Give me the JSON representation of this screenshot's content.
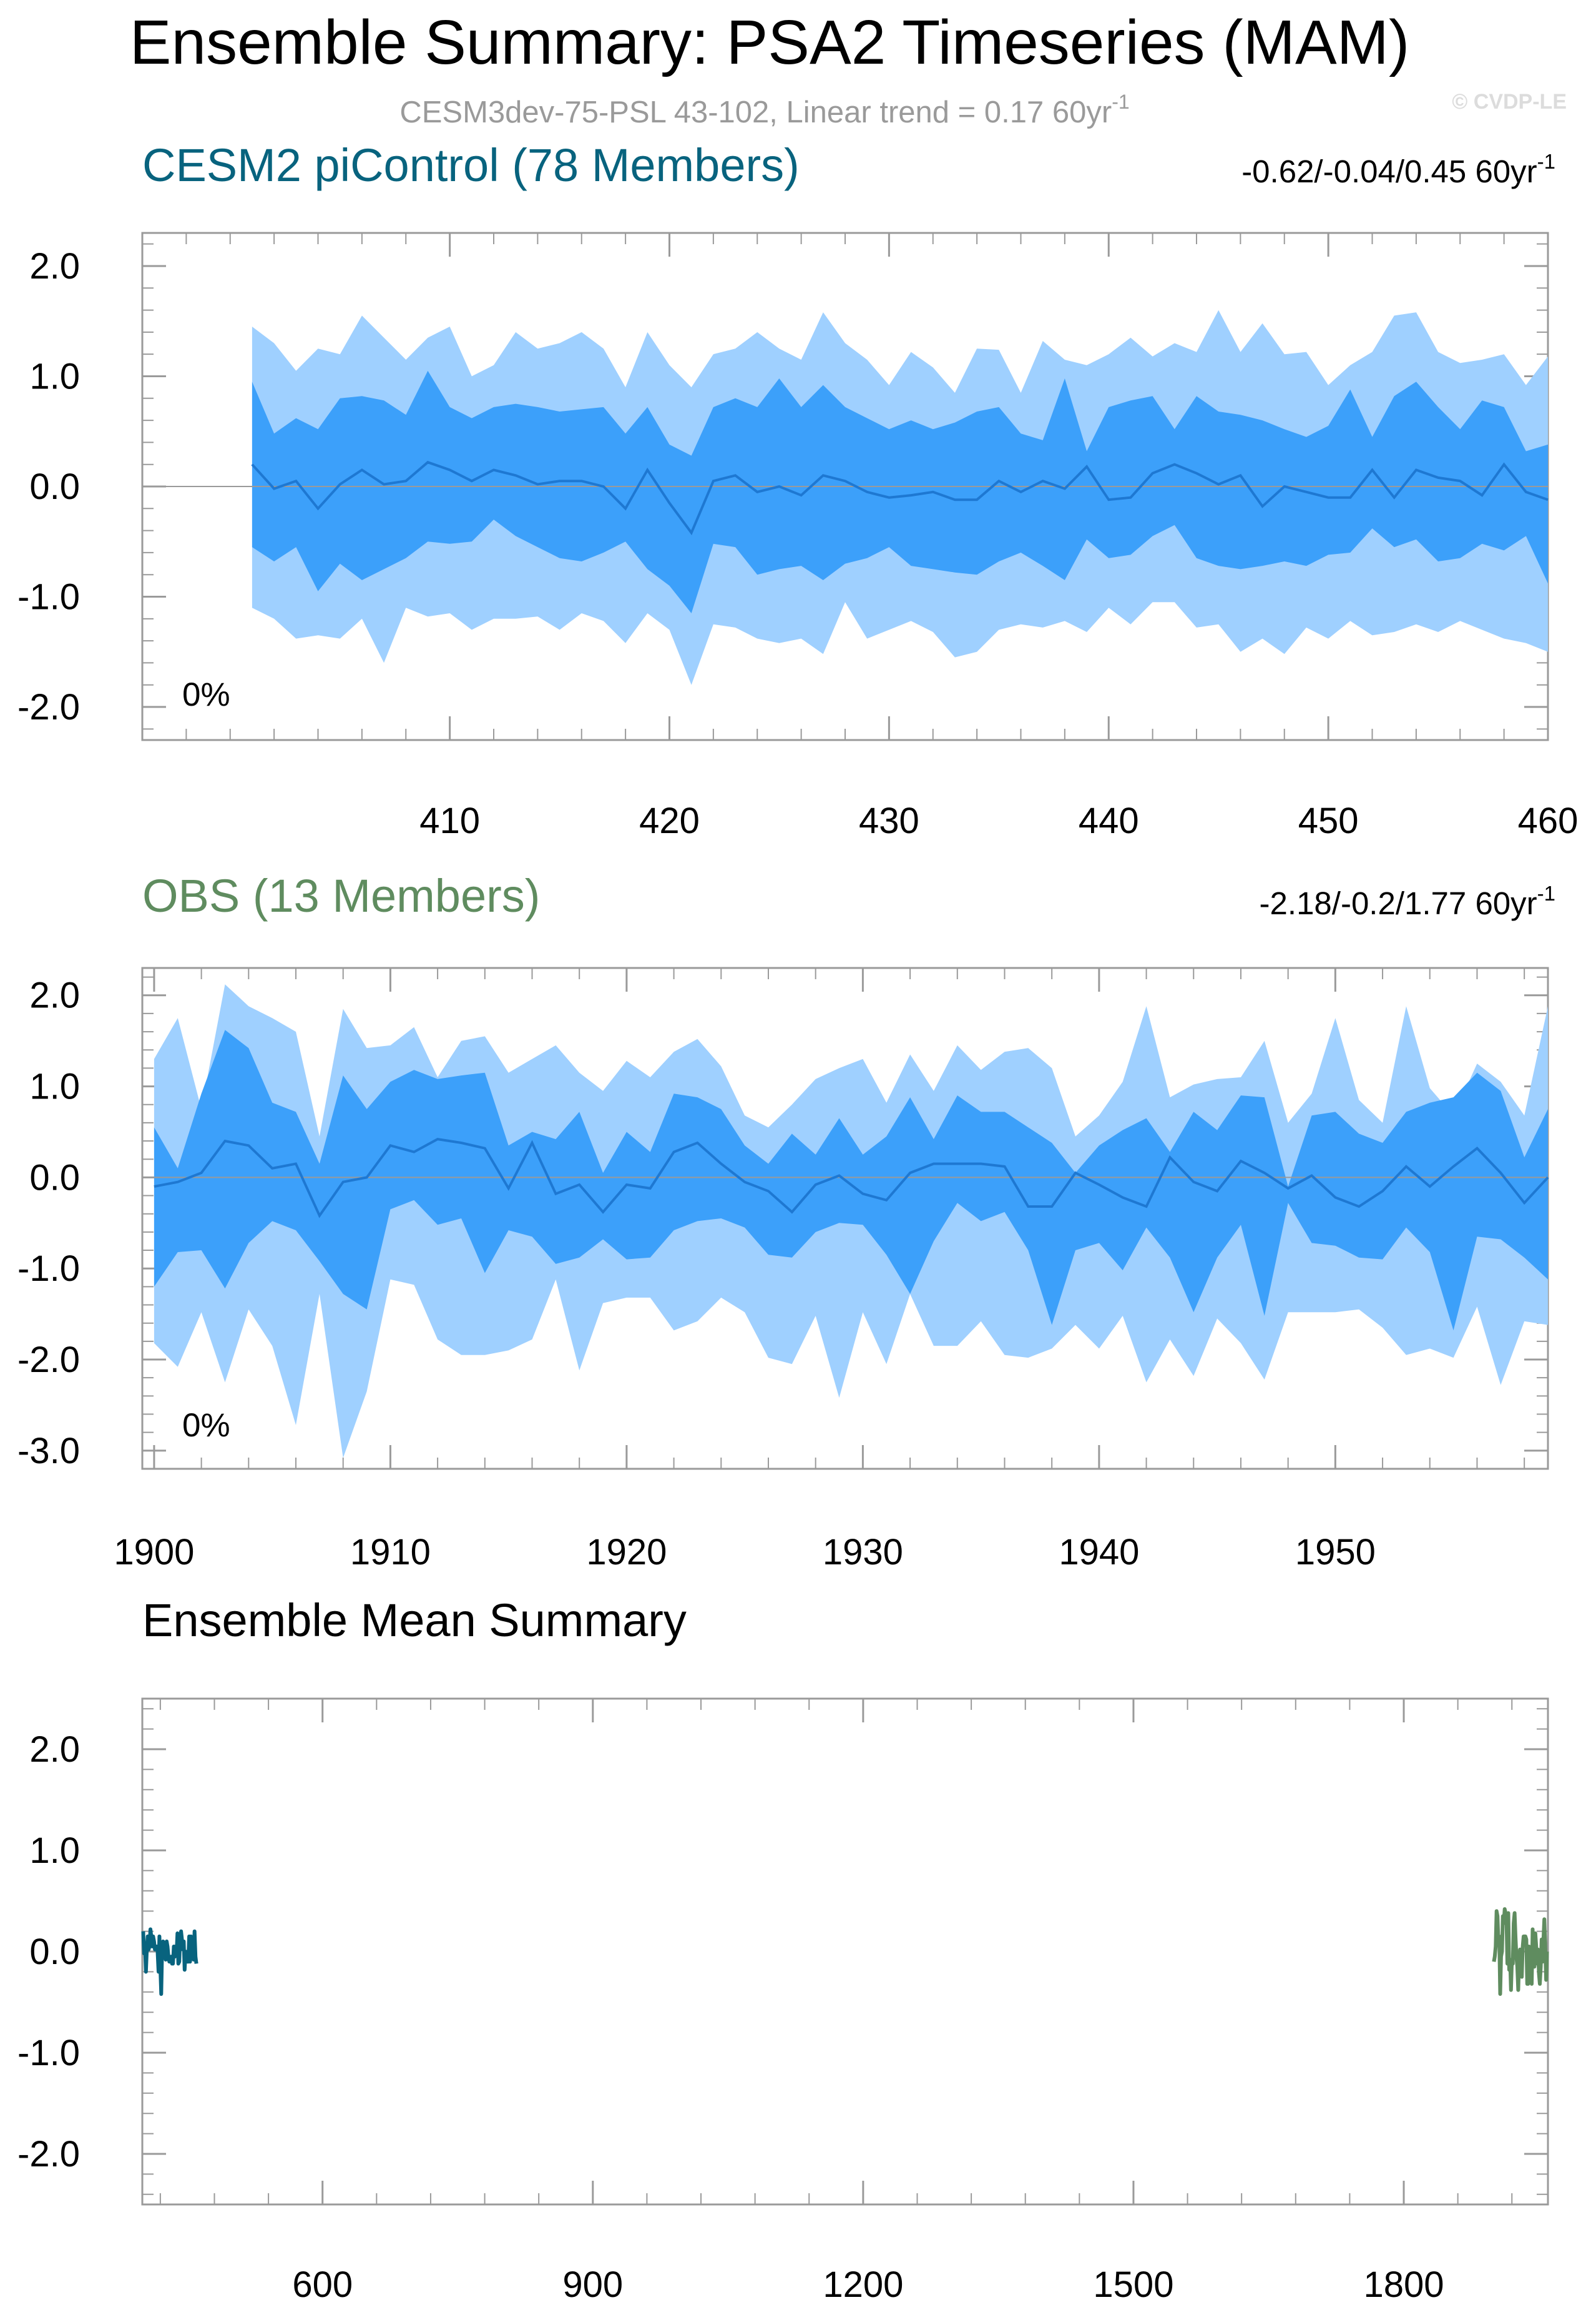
{
  "title": "Ensemble Summary: PSA2 Timeseries (MAM)",
  "subtitle": {
    "main": "CESM3dev-75-PSL 43-102, Linear trend = 0.17 60yr",
    "sup": "-1"
  },
  "watermark": "© CVDP-LE",
  "colors": {
    "outer": "#9fd0ff",
    "inner": "#3ca0fa",
    "mean": "#1e78d2",
    "cesm": "#08637e",
    "obs": "#5f8c5f",
    "zero": "#9a9a9a"
  },
  "chart_data": [
    {
      "type": "area",
      "title": "CESM2 piControl (78 Members)",
      "title_color": "#08637e",
      "trend_label": "-0.62/-0.04/0.45 60yr",
      "trend_sup": "-1",
      "pct_label": "0%",
      "x": [
        401,
        402,
        403,
        404,
        405,
        406,
        407,
        408,
        409,
        410,
        411,
        412,
        413,
        414,
        415,
        416,
        417,
        418,
        419,
        420,
        421,
        422,
        423,
        424,
        425,
        426,
        427,
        428,
        429,
        430,
        431,
        432,
        433,
        434,
        435,
        436,
        437,
        438,
        439,
        440,
        441,
        442,
        443,
        444,
        445,
        446,
        447,
        448,
        449,
        450,
        451,
        452,
        453,
        454,
        455,
        456,
        457,
        458,
        459,
        460
      ],
      "xlim": [
        396,
        460
      ],
      "ylim": [
        -2.3,
        2.3
      ],
      "xticks": [
        410,
        420,
        430,
        440,
        450,
        460
      ],
      "xtick_labels": [
        "410",
        "420",
        "430",
        "440",
        "450",
        "460"
      ],
      "yticks": [
        2,
        1,
        0,
        -1,
        -2
      ],
      "ytick_labels": [
        "2.0",
        "1.0",
        "0.0",
        "-1.0",
        "-2.0"
      ],
      "series": [
        {
          "name": "outer_upper",
          "values": [
            1.45,
            1.3,
            1.05,
            1.25,
            1.2,
            1.55,
            1.35,
            1.15,
            1.35,
            1.45,
            1.0,
            1.1,
            1.4,
            1.25,
            1.3,
            1.4,
            1.25,
            0.9,
            1.4,
            1.1,
            0.9,
            1.2,
            1.25,
            1.4,
            1.25,
            1.15,
            1.58,
            1.3,
            1.15,
            0.92,
            1.22,
            1.08,
            0.85,
            1.25,
            1.24,
            0.85,
            1.32,
            1.15,
            1.1,
            1.2,
            1.35,
            1.18,
            1.3,
            1.22,
            1.6,
            1.22,
            1.48,
            1.2,
            1.22,
            0.92,
            1.1,
            1.22,
            1.55,
            1.58,
            1.22,
            1.12,
            1.15,
            1.2,
            0.92,
            1.18
          ]
        },
        {
          "name": "inner_upper",
          "values": [
            0.95,
            0.48,
            0.62,
            0.52,
            0.8,
            0.82,
            0.78,
            0.65,
            1.05,
            0.72,
            0.62,
            0.72,
            0.75,
            0.72,
            0.68,
            0.7,
            0.72,
            0.48,
            0.72,
            0.38,
            0.28,
            0.72,
            0.8,
            0.72,
            0.98,
            0.72,
            0.92,
            0.72,
            0.62,
            0.52,
            0.6,
            0.52,
            0.58,
            0.68,
            0.72,
            0.48,
            0.42,
            0.98,
            0.32,
            0.72,
            0.78,
            0.82,
            0.52,
            0.82,
            0.68,
            0.65,
            0.6,
            0.52,
            0.45,
            0.55,
            0.88,
            0.45,
            0.82,
            0.95,
            0.72,
            0.52,
            0.78,
            0.72,
            0.32,
            0.38
          ]
        },
        {
          "name": "median",
          "values": [
            0.2,
            -0.02,
            0.05,
            -0.2,
            0.02,
            0.15,
            0.02,
            0.05,
            0.22,
            0.15,
            0.05,
            0.15,
            0.1,
            0.02,
            0.05,
            0.05,
            0.0,
            -0.2,
            0.15,
            -0.15,
            -0.42,
            0.05,
            0.1,
            -0.05,
            0.0,
            -0.08,
            0.1,
            0.05,
            -0.05,
            -0.1,
            -0.08,
            -0.05,
            -0.12,
            -0.12,
            0.05,
            -0.05,
            0.05,
            -0.02,
            0.18,
            -0.12,
            -0.1,
            0.12,
            0.2,
            0.12,
            0.02,
            0.1,
            -0.18,
            0.0,
            -0.05,
            -0.1,
            -0.1,
            0.15,
            -0.1,
            0.15,
            0.08,
            0.05,
            -0.08,
            0.2,
            -0.05,
            -0.12
          ]
        },
        {
          "name": "inner_lower",
          "values": [
            -0.55,
            -0.68,
            -0.55,
            -0.95,
            -0.7,
            -0.85,
            -0.75,
            -0.65,
            -0.5,
            -0.52,
            -0.5,
            -0.3,
            -0.45,
            -0.55,
            -0.65,
            -0.68,
            -0.6,
            -0.5,
            -0.75,
            -0.9,
            -1.15,
            -0.52,
            -0.55,
            -0.8,
            -0.75,
            -0.72,
            -0.85,
            -0.7,
            -0.65,
            -0.55,
            -0.72,
            -0.75,
            -0.78,
            -0.8,
            -0.68,
            -0.6,
            -0.72,
            -0.85,
            -0.48,
            -0.65,
            -0.62,
            -0.45,
            -0.35,
            -0.65,
            -0.72,
            -0.75,
            -0.72,
            -0.68,
            -0.72,
            -0.62,
            -0.6,
            -0.38,
            -0.55,
            -0.48,
            -0.68,
            -0.65,
            -0.52,
            -0.58,
            -0.45,
            -0.88
          ]
        },
        {
          "name": "outer_lower",
          "values": [
            -1.1,
            -1.2,
            -1.38,
            -1.35,
            -1.38,
            -1.2,
            -1.6,
            -1.1,
            -1.18,
            -1.15,
            -1.3,
            -1.2,
            -1.2,
            -1.18,
            -1.3,
            -1.15,
            -1.22,
            -1.42,
            -1.15,
            -1.3,
            -1.8,
            -1.25,
            -1.28,
            -1.38,
            -1.42,
            -1.38,
            -1.52,
            -1.05,
            -1.38,
            -1.3,
            -1.22,
            -1.32,
            -1.55,
            -1.5,
            -1.3,
            -1.25,
            -1.28,
            -1.22,
            -1.32,
            -1.1,
            -1.25,
            -1.05,
            -1.05,
            -1.28,
            -1.25,
            -1.5,
            -1.38,
            -1.52,
            -1.28,
            -1.38,
            -1.22,
            -1.35,
            -1.32,
            -1.25,
            -1.32,
            -1.22,
            -1.3,
            -1.38,
            -1.42,
            -1.5
          ]
        }
      ]
    },
    {
      "type": "area",
      "title": "OBS (13 Members)",
      "title_color": "#5f8c5f",
      "trend_label": "-2.18/-0.2/1.77 60yr",
      "trend_sup": "-1",
      "pct_label": "0%",
      "x": [
        1900,
        1901,
        1902,
        1903,
        1904,
        1905,
        1906,
        1907,
        1908,
        1909,
        1910,
        1911,
        1912,
        1913,
        1914,
        1915,
        1916,
        1917,
        1918,
        1919,
        1920,
        1921,
        1922,
        1923,
        1924,
        1925,
        1926,
        1927,
        1928,
        1929,
        1930,
        1931,
        1932,
        1933,
        1934,
        1935,
        1936,
        1937,
        1938,
        1939,
        1940,
        1941,
        1942,
        1943,
        1944,
        1945,
        1946,
        1947,
        1948,
        1949,
        1950,
        1951,
        1952,
        1953,
        1954,
        1955,
        1956,
        1957,
        1958,
        1959
      ],
      "xlim": [
        1899.5,
        1959
      ],
      "ylim": [
        -3.2,
        2.3
      ],
      "xticks": [
        1900,
        1910,
        1920,
        1930,
        1940,
        1950
      ],
      "xtick_labels": [
        "1900",
        "1910",
        "1920",
        "1930",
        "1940",
        "1950"
      ],
      "yticks": [
        2,
        1,
        0,
        -1,
        -2,
        -3
      ],
      "ytick_labels": [
        "2.0",
        "1.0",
        "0.0",
        "-1.0",
        "-2.0",
        "-3.0"
      ],
      "series": [
        {
          "name": "outer_upper",
          "values": [
            1.3,
            1.75,
            0.75,
            2.12,
            1.88,
            1.75,
            1.6,
            0.45,
            1.85,
            1.42,
            1.45,
            1.65,
            1.1,
            1.5,
            1.55,
            1.15,
            1.3,
            1.45,
            1.15,
            0.95,
            1.28,
            1.1,
            1.38,
            1.52,
            1.22,
            0.68,
            0.55,
            0.8,
            1.08,
            1.2,
            1.3,
            0.82,
            1.35,
            0.95,
            1.45,
            1.18,
            1.38,
            1.42,
            1.2,
            0.45,
            0.68,
            1.05,
            1.88,
            0.88,
            1.02,
            1.08,
            1.1,
            1.5,
            0.6,
            0.92,
            1.75,
            0.85,
            0.6,
            1.88,
            0.98,
            0.68,
            1.25,
            1.05,
            0.68,
            1.88
          ]
        },
        {
          "name": "inner_upper",
          "values": [
            0.55,
            0.1,
            0.92,
            1.62,
            1.42,
            0.82,
            0.72,
            0.15,
            1.12,
            0.75,
            1.05,
            1.18,
            1.08,
            1.12,
            1.15,
            0.35,
            0.5,
            0.42,
            0.72,
            0.05,
            0.5,
            0.28,
            0.92,
            0.88,
            0.75,
            0.35,
            0.15,
            0.48,
            0.25,
            0.65,
            0.25,
            0.45,
            0.88,
            0.42,
            0.9,
            0.72,
            0.72,
            0.55,
            0.38,
            0.05,
            0.35,
            0.52,
            0.65,
            0.28,
            0.72,
            0.52,
            0.9,
            0.88,
            -0.1,
            0.68,
            0.72,
            0.48,
            0.38,
            0.72,
            0.82,
            0.88,
            1.15,
            0.95,
            0.22,
            0.75
          ]
        },
        {
          "name": "median",
          "values": [
            -0.1,
            -0.05,
            0.05,
            0.4,
            0.35,
            0.1,
            0.15,
            -0.42,
            -0.05,
            0.0,
            0.35,
            0.28,
            0.42,
            0.38,
            0.32,
            -0.12,
            0.38,
            -0.18,
            -0.08,
            -0.38,
            -0.08,
            -0.12,
            0.28,
            0.38,
            0.15,
            -0.05,
            -0.15,
            -0.38,
            -0.08,
            0.02,
            -0.18,
            -0.25,
            0.05,
            0.15,
            0.15,
            0.15,
            0.12,
            -0.32,
            -0.32,
            0.05,
            -0.08,
            -0.22,
            -0.32,
            0.22,
            -0.05,
            -0.15,
            0.18,
            0.05,
            -0.12,
            0.02,
            -0.22,
            -0.32,
            -0.15,
            0.12,
            -0.1,
            0.12,
            0.32,
            0.05,
            -0.28,
            0.0
          ]
        },
        {
          "name": "inner_lower",
          "values": [
            -1.2,
            -0.82,
            -0.8,
            -1.22,
            -0.72,
            -0.48,
            -0.58,
            -0.92,
            -1.28,
            -1.45,
            -0.35,
            -0.25,
            -0.52,
            -0.45,
            -1.05,
            -0.58,
            -0.65,
            -0.95,
            -0.88,
            -0.68,
            -0.9,
            -0.88,
            -0.58,
            -0.48,
            -0.45,
            -0.55,
            -0.85,
            -0.88,
            -0.6,
            -0.5,
            -0.52,
            -0.85,
            -1.28,
            -0.7,
            -0.28,
            -0.48,
            -0.38,
            -0.8,
            -1.62,
            -0.8,
            -0.72,
            -1.02,
            -0.55,
            -0.88,
            -1.48,
            -0.88,
            -0.52,
            -1.52,
            -0.28,
            -0.72,
            -0.75,
            -0.88,
            -0.9,
            -0.55,
            -0.82,
            -1.68,
            -0.65,
            -0.68,
            -0.88,
            -1.12
          ]
        },
        {
          "name": "outer_lower",
          "values": [
            -1.82,
            -2.08,
            -1.48,
            -2.25,
            -1.45,
            -1.85,
            -2.72,
            -1.28,
            -3.08,
            -2.35,
            -1.12,
            -1.18,
            -1.78,
            -1.95,
            -1.95,
            -1.9,
            -1.78,
            -1.12,
            -2.12,
            -1.38,
            -1.32,
            -1.32,
            -1.68,
            -1.58,
            -1.32,
            -1.48,
            -1.98,
            -2.05,
            -1.52,
            -2.42,
            -1.48,
            -2.05,
            -1.28,
            -1.85,
            -1.85,
            -1.58,
            -1.95,
            -1.98,
            -1.88,
            -1.62,
            -1.88,
            -1.52,
            -2.25,
            -1.78,
            -2.18,
            -1.55,
            -1.82,
            -2.22,
            -1.48,
            -1.48,
            -1.48,
            -1.45,
            -1.65,
            -1.95,
            -1.88,
            -1.98,
            -1.42,
            -2.28,
            -1.58,
            -1.62
          ]
        }
      ]
    },
    {
      "type": "line",
      "title": "Ensemble Mean Summary",
      "xlim": [
        400,
        1960
      ],
      "ylim": [
        -2.5,
        2.5
      ],
      "xticks": [
        600,
        900,
        1200,
        1500,
        1800
      ],
      "xtick_labels": [
        "600",
        "900",
        "1200",
        "1500",
        "1800"
      ],
      "yticks": [
        2,
        1,
        0,
        -1,
        -2
      ],
      "ytick_labels": [
        "2.0",
        "1.0",
        "0.0",
        "-1.0",
        "-2.0"
      ],
      "series": [
        {
          "name": "CESM2 piControl",
          "color": "#08637e",
          "x_start": 401,
          "values": [
            0.2,
            -0.02,
            0.05,
            -0.2,
            0.02,
            0.15,
            0.02,
            0.05,
            0.22,
            0.15,
            0.05,
            0.15,
            0.1,
            0.02,
            0.05,
            0.05,
            0.0,
            -0.2,
            0.15,
            -0.15,
            -0.42,
            0.05,
            0.1,
            -0.05,
            0.0,
            -0.08,
            0.1,
            0.05,
            -0.05,
            -0.1,
            -0.08,
            -0.05,
            -0.12,
            -0.12,
            0.05,
            -0.05,
            0.05,
            -0.02,
            0.18,
            -0.12,
            -0.1,
            0.12,
            0.2,
            0.12,
            0.02,
            0.1,
            -0.18,
            0.0,
            -0.05,
            -0.1,
            -0.1,
            0.15,
            -0.1,
            0.15,
            0.08,
            0.05,
            -0.08,
            0.2,
            -0.05,
            -0.12
          ]
        },
        {
          "name": "OBS",
          "color": "#5f8c5f",
          "x_start": 1900,
          "values": [
            -0.1,
            -0.05,
            0.05,
            0.4,
            0.35,
            0.1,
            0.15,
            -0.42,
            -0.05,
            0.0,
            0.35,
            0.28,
            0.42,
            0.38,
            0.32,
            -0.12,
            0.38,
            -0.18,
            -0.08,
            -0.38,
            -0.08,
            -0.12,
            0.28,
            0.38,
            0.15,
            -0.05,
            -0.15,
            -0.38,
            -0.08,
            0.02,
            -0.18,
            -0.25,
            0.05,
            0.15,
            0.15,
            0.15,
            0.12,
            -0.32,
            -0.32,
            0.05,
            -0.08,
            -0.22,
            -0.32,
            0.22,
            -0.05,
            -0.15,
            0.18,
            0.05,
            -0.12,
            0.02,
            -0.22,
            -0.32,
            -0.15,
            0.12,
            -0.1,
            0.12,
            0.32,
            0.05,
            -0.28,
            0.0
          ]
        }
      ]
    }
  ]
}
